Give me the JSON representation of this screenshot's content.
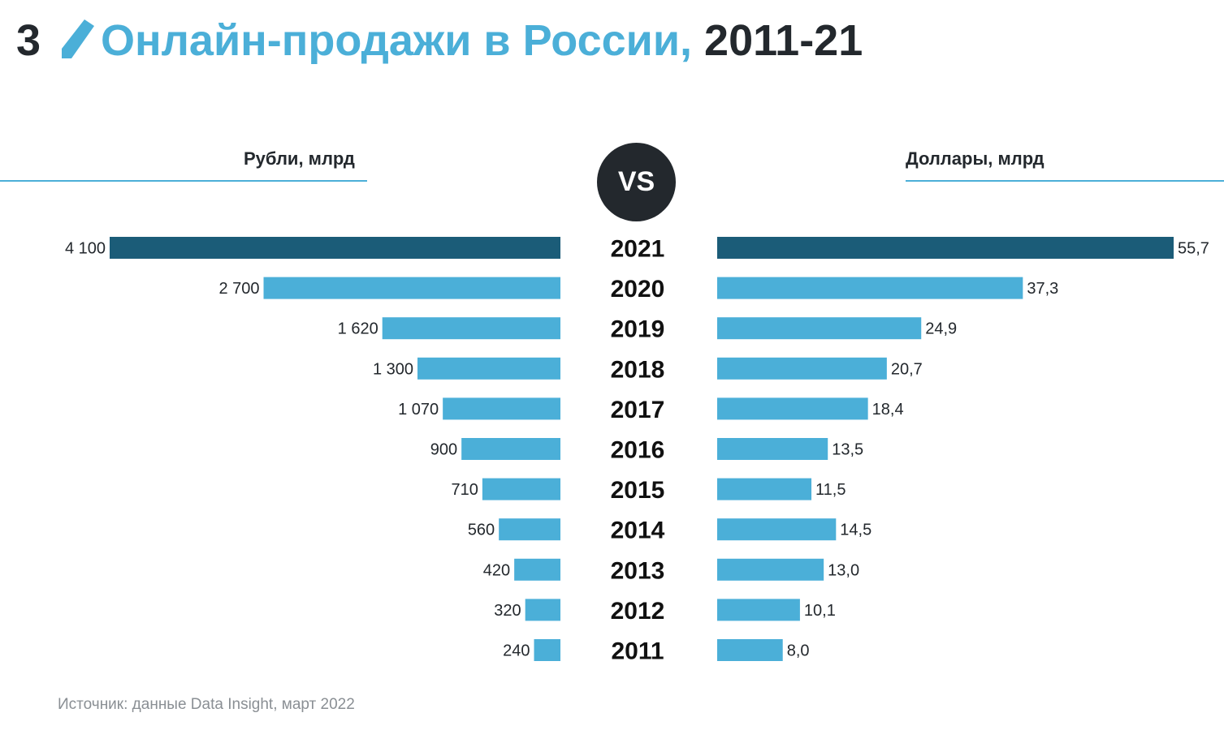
{
  "header": {
    "slide_number": "3",
    "title": "Онлайн-продажи в России,",
    "title_years": "2011-21"
  },
  "vs_label": "VS",
  "source": "Источник: данные Data Insight, март 2022",
  "colors": {
    "accent": "#4bafd8",
    "highlight": "#1b5c78",
    "text_dark": "#23282d"
  },
  "chart_data": {
    "type": "bar",
    "orientation": "horizontal-butterfly",
    "categories": [
      "2021",
      "2020",
      "2019",
      "2018",
      "2017",
      "2016",
      "2015",
      "2014",
      "2013",
      "2012",
      "2011"
    ],
    "highlight_category": "2021",
    "series": [
      {
        "name": "Рубли, млрд",
        "side": "left",
        "values": [
          4100,
          2700,
          1620,
          1300,
          1070,
          900,
          710,
          560,
          420,
          320,
          240
        ],
        "labels": [
          "4 100",
          "2 700",
          "1 620",
          "1 300",
          "1 070",
          "900",
          "710",
          "560",
          "420",
          "320",
          "240"
        ],
        "xlim": [
          0,
          4100
        ]
      },
      {
        "name": "Доллары, млрд",
        "side": "right",
        "values": [
          55.7,
          37.3,
          24.9,
          20.7,
          18.4,
          13.5,
          11.5,
          14.5,
          13.0,
          10.1,
          8.0
        ],
        "labels": [
          "55,7",
          "37,3",
          "24,9",
          "20,7",
          "18,4",
          "13,5",
          "11,5",
          "14,5",
          "13,0",
          "10,1",
          "8,0"
        ],
        "xlim": [
          0,
          55.7
        ]
      }
    ],
    "grid": false
  }
}
